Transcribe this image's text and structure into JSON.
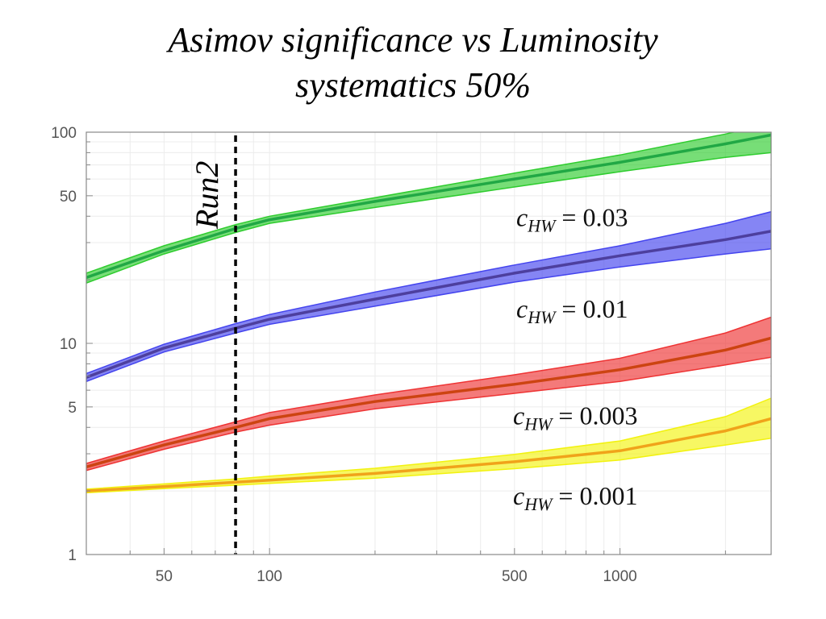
{
  "chart_data": {
    "type": "line",
    "title": "Asimov significance vs Luminosity",
    "subtitle": "systematics 50%",
    "xlabel": "",
    "ylabel": "",
    "x_scale": "log",
    "y_scale": "log",
    "xlim": [
      30,
      2700
    ],
    "ylim": [
      1,
      100
    ],
    "x_ticks": [
      50,
      100,
      500,
      1000
    ],
    "y_ticks": [
      1,
      5,
      10,
      50,
      100
    ],
    "grid": true,
    "reference_line": {
      "x": 80,
      "label": "Run2",
      "style": "dashed"
    },
    "x": [
      30,
      50,
      80,
      100,
      200,
      500,
      1000,
      2000,
      2700
    ],
    "series": [
      {
        "name": "c_HW = 0.03",
        "label": {
          "base": "c",
          "sub": "HW",
          "rest": " = 0.03"
        },
        "color": "#2ecc2e",
        "line_color": "#21a845",
        "values": [
          20.5,
          27.5,
          35,
          38.5,
          47,
          60,
          72,
          88,
          97
        ],
        "band_low": [
          19.3,
          26.5,
          33.5,
          37,
          44,
          55,
          65,
          76,
          80
        ],
        "band_high": [
          21.5,
          29,
          36.5,
          40,
          49,
          64,
          78,
          98,
          110
        ]
      },
      {
        "name": "c_HW = 0.01",
        "label": {
          "base": "c",
          "sub": "HW",
          "rest": " = 0.01"
        },
        "color": "#4444ee",
        "line_color": "#4d3f9e",
        "values": [
          6.9,
          9.5,
          11.8,
          13,
          16.2,
          21.5,
          26,
          31,
          34
        ],
        "band_low": [
          6.6,
          9.1,
          11.2,
          12.3,
          15,
          19.5,
          23,
          26.5,
          28
        ],
        "band_high": [
          7.2,
          9.9,
          12.4,
          13.7,
          17.5,
          23.5,
          29,
          37,
          42
        ]
      },
      {
        "name": "c_HW = 0.003",
        "label": {
          "base": "c",
          "sub": "HW",
          "rest": " = 0.003"
        },
        "color": "#ee3333",
        "line_color": "#cc4411",
        "values": [
          2.6,
          3.3,
          4,
          4.4,
          5.3,
          6.4,
          7.5,
          9.3,
          10.6
        ],
        "band_low": [
          2.5,
          3.15,
          3.8,
          4.1,
          4.9,
          5.8,
          6.6,
          7.9,
          8.6
        ],
        "band_high": [
          2.7,
          3.45,
          4.25,
          4.7,
          5.7,
          7.1,
          8.5,
          11.2,
          13.3
        ]
      },
      {
        "name": "c_HW = 0.001",
        "label": {
          "base": "c",
          "sub": "HW",
          "rest": " = 0.001"
        },
        "color": "#f2f20f",
        "line_color": "#f0a31a",
        "values": [
          2,
          2.1,
          2.2,
          2.25,
          2.42,
          2.75,
          3.1,
          3.85,
          4.4
        ],
        "band_low": [
          1.96,
          2.05,
          2.13,
          2.17,
          2.3,
          2.55,
          2.8,
          3.3,
          3.55
        ],
        "band_high": [
          2.04,
          2.16,
          2.28,
          2.35,
          2.56,
          2.98,
          3.45,
          4.5,
          5.5
        ]
      }
    ]
  }
}
